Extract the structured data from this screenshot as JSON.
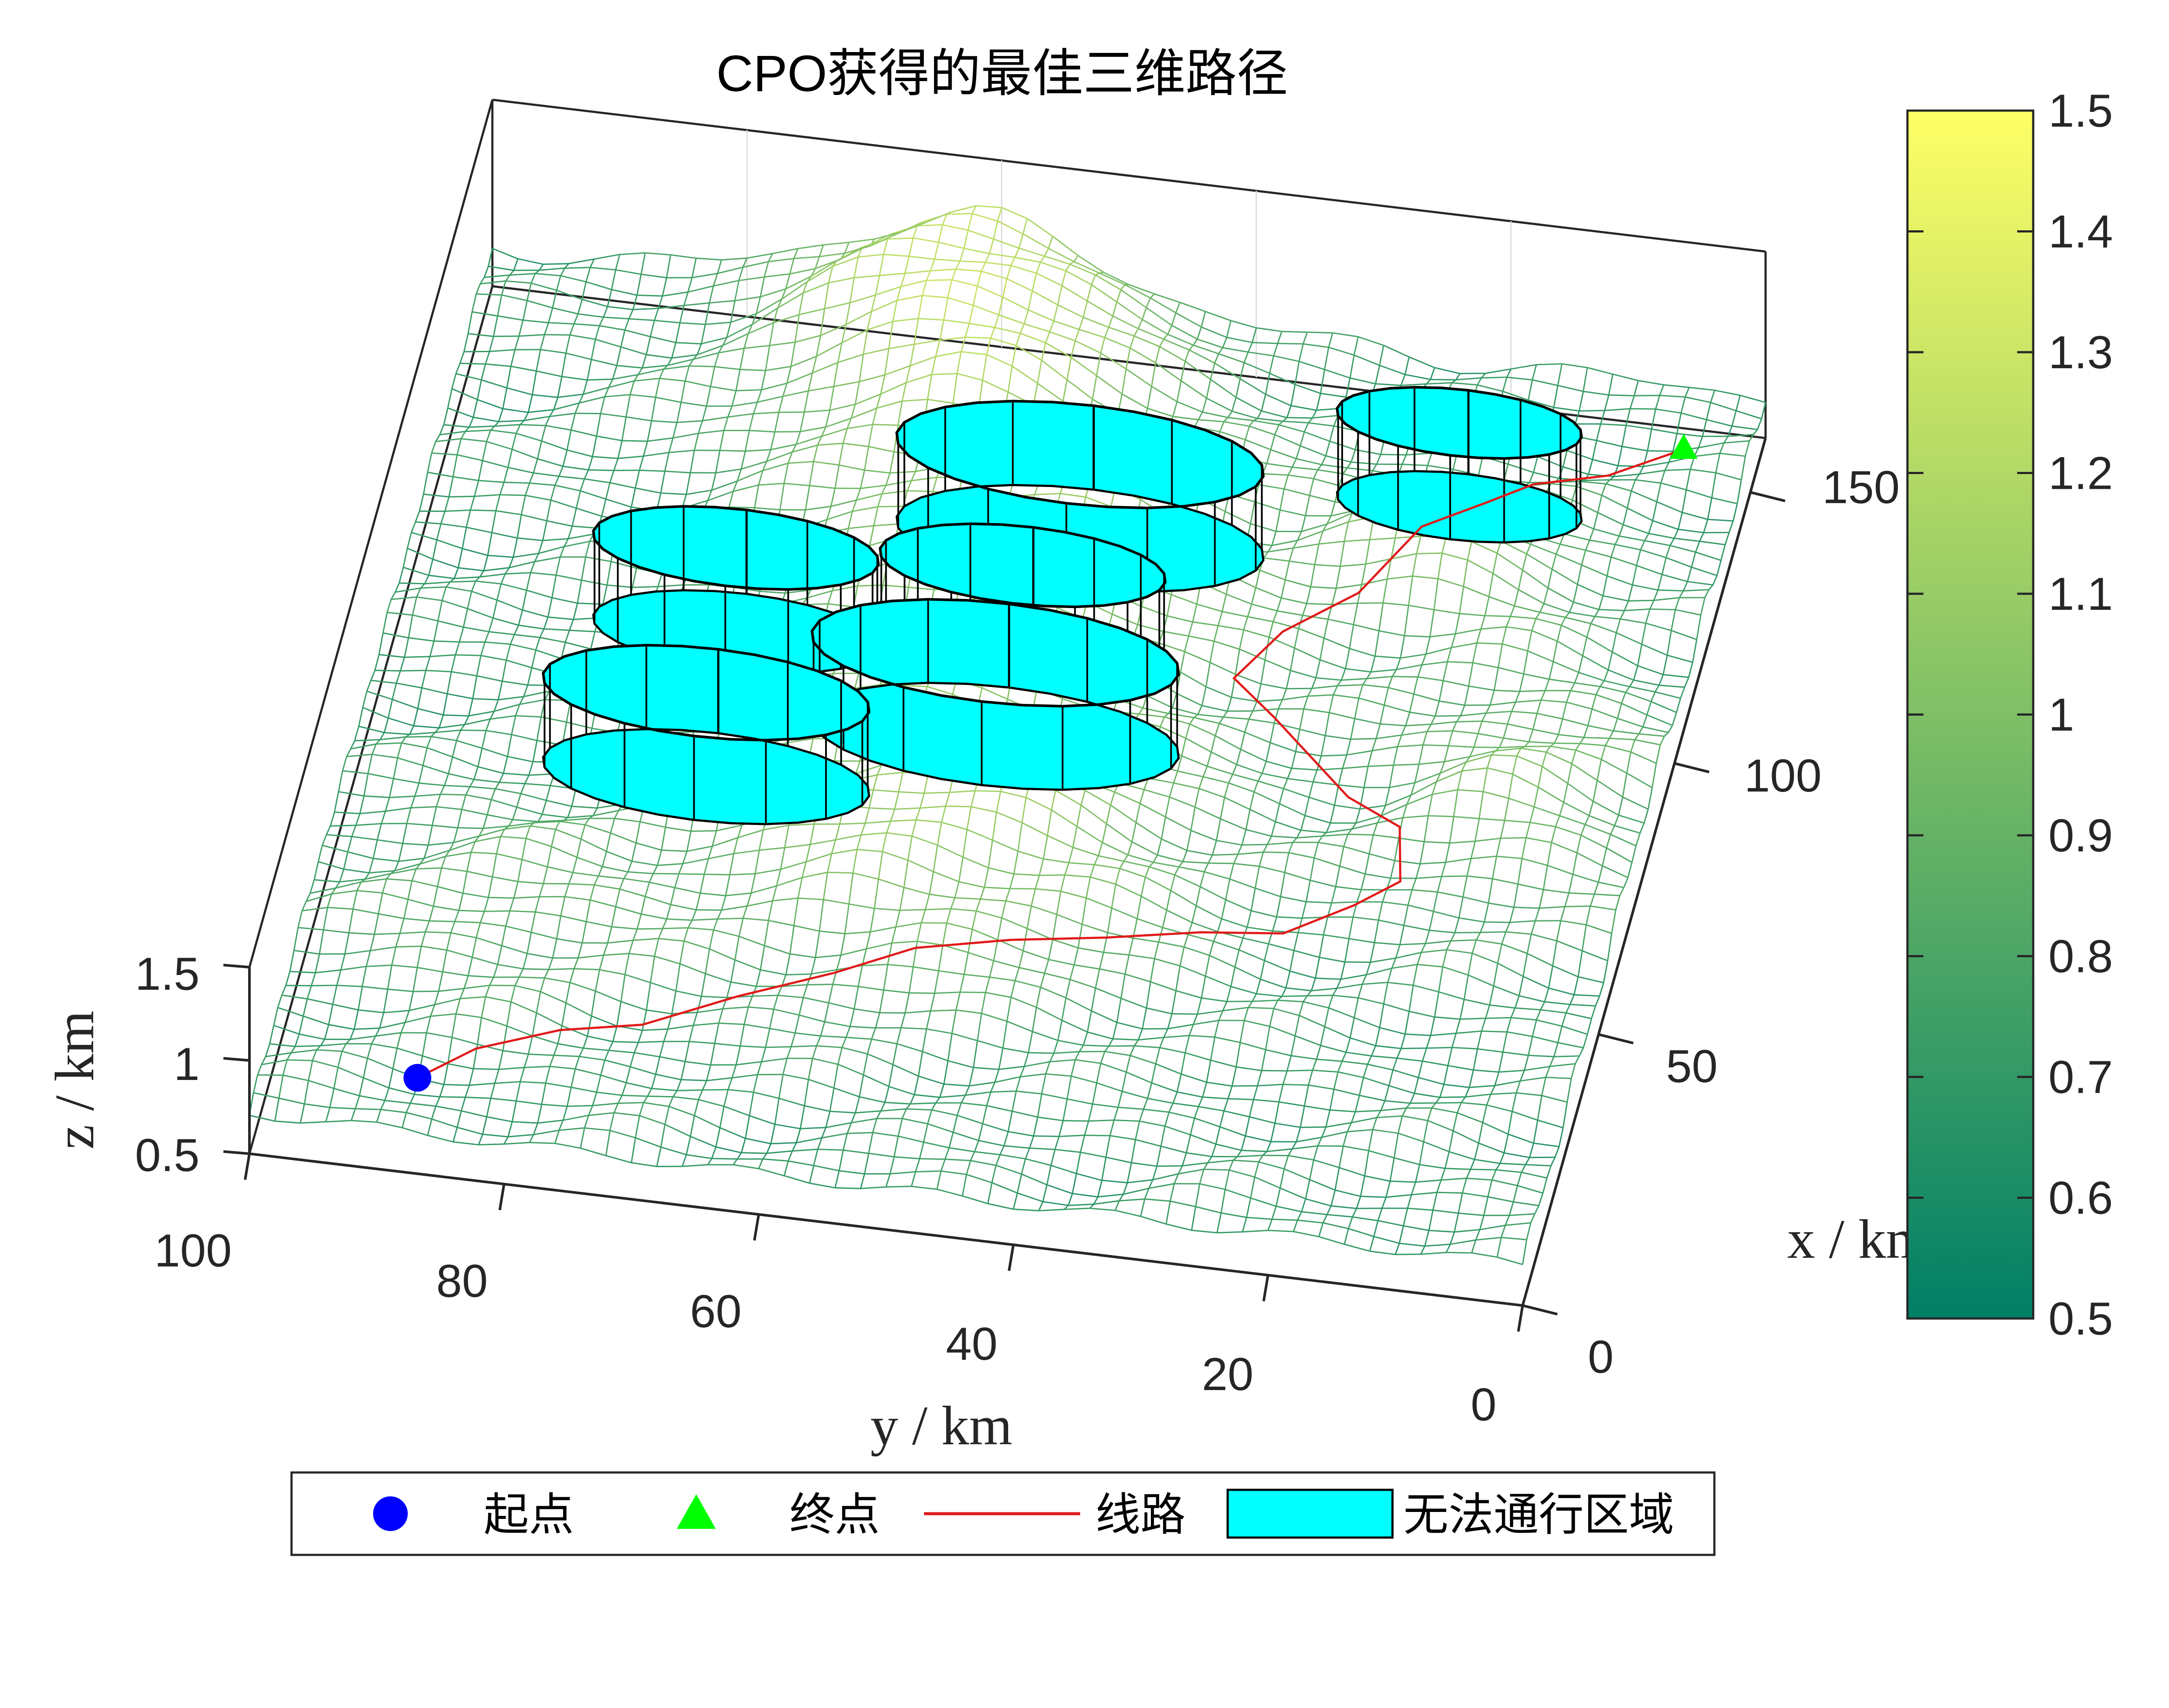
{
  "chart_data": {
    "type": "surface3d",
    "title": "CPO获得的最佳三维路径",
    "xlabel": "x / km",
    "ylabel": "y / km",
    "zlabel": "z / km",
    "xlim": [
      0,
      160
    ],
    "ylim": [
      0,
      100
    ],
    "zlim": [
      0.5,
      1.5
    ],
    "x_ticks": [
      "0",
      "50",
      "100",
      "150"
    ],
    "y_ticks": [
      "100",
      "80",
      "60",
      "40",
      "20",
      "0"
    ],
    "z_ticks": [
      "0.5",
      "1",
      "1.5"
    ],
    "colorbar": {
      "min": 0.5,
      "max": 1.5,
      "ticks": [
        "0.5",
        "0.6",
        "0.7",
        "0.8",
        "0.9",
        "1",
        "1.1",
        "1.2",
        "1.3",
        "1.4",
        "1.5"
      ],
      "colormap": [
        "#007f66",
        "#3f9f66",
        "#7fbf66",
        "#bfdf66",
        "#ffff66"
      ]
    },
    "start_point": {
      "x": 10,
      "y": 88
    },
    "end_point": {
      "x": 148,
      "y": 5
    },
    "path": [
      {
        "x": 10,
        "y": 88
      },
      {
        "x": 15,
        "y": 84
      },
      {
        "x": 20,
        "y": 78
      },
      {
        "x": 24,
        "y": 72
      },
      {
        "x": 28,
        "y": 65
      },
      {
        "x": 33,
        "y": 58
      },
      {
        "x": 36,
        "y": 52
      },
      {
        "x": 40,
        "y": 45
      },
      {
        "x": 44,
        "y": 38
      },
      {
        "x": 48,
        "y": 31
      },
      {
        "x": 52,
        "y": 25
      },
      {
        "x": 57,
        "y": 20
      },
      {
        "x": 62,
        "y": 17
      },
      {
        "x": 70,
        "y": 18
      },
      {
        "x": 78,
        "y": 23
      },
      {
        "x": 88,
        "y": 30
      },
      {
        "x": 95,
        "y": 34
      },
      {
        "x": 102,
        "y": 31
      },
      {
        "x": 110,
        "y": 26
      },
      {
        "x": 118,
        "y": 22
      },
      {
        "x": 126,
        "y": 18
      },
      {
        "x": 133,
        "y": 15
      },
      {
        "x": 140,
        "y": 10
      },
      {
        "x": 148,
        "y": 5
      }
    ],
    "obstacles": [
      {
        "x": 66,
        "y": 72,
        "r": 8
      },
      {
        "x": 111,
        "y": 48,
        "r": 9
      },
      {
        "x": 126,
        "y": 20,
        "r": 6
      },
      {
        "x": 72,
        "y": 50,
        "r": 9
      },
      {
        "x": 90,
        "y": 50,
        "r": 7
      },
      {
        "x": 94,
        "y": 73,
        "r": 7
      }
    ],
    "legend": {
      "position": "bottom",
      "items": [
        "起点",
        "终点",
        "线路",
        "无法通行区域"
      ]
    },
    "colors": {
      "start": "#0000ff",
      "end": "#00ff00",
      "path": "#e11a1a",
      "obstacle": "#00ffff",
      "obstacle_edge": "#000000",
      "axis": "#262626",
      "grid": "#dcdcdc"
    }
  }
}
